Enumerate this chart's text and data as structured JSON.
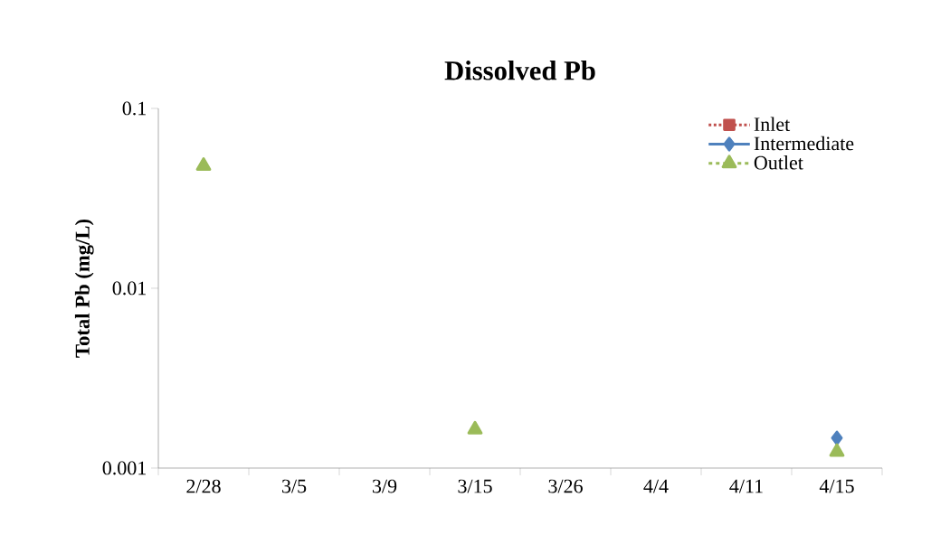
{
  "chart_data": {
    "type": "line",
    "title": "Dissolved Pb",
    "ylabel": "Total Pb (mg/L)",
    "categories": [
      "2/28",
      "3/5",
      "3/9",
      "3/15",
      "3/26",
      "4/4",
      "4/11",
      "4/15"
    ],
    "series": [
      {
        "name": "Inlet",
        "color": "#c0504d",
        "marker": "square",
        "line_style": "dotted",
        "values": [
          null,
          null,
          null,
          null,
          null,
          null,
          null,
          null
        ]
      },
      {
        "name": "Intermediate",
        "color": "#4f81bd",
        "marker": "diamond",
        "line_style": "solid",
        "values": [
          null,
          null,
          null,
          null,
          null,
          null,
          null,
          0.00147
        ]
      },
      {
        "name": "Outlet",
        "color": "#9bbb59",
        "marker": "triangle",
        "line_style": "dashed",
        "values": [
          0.048,
          null,
          null,
          0.00164,
          null,
          null,
          null,
          0.00123
        ]
      }
    ],
    "log": "y",
    "ylim": [
      0.001,
      0.1
    ],
    "yticks": [
      0.001,
      0.01,
      0.1
    ],
    "grid": false,
    "legend": "top right"
  }
}
